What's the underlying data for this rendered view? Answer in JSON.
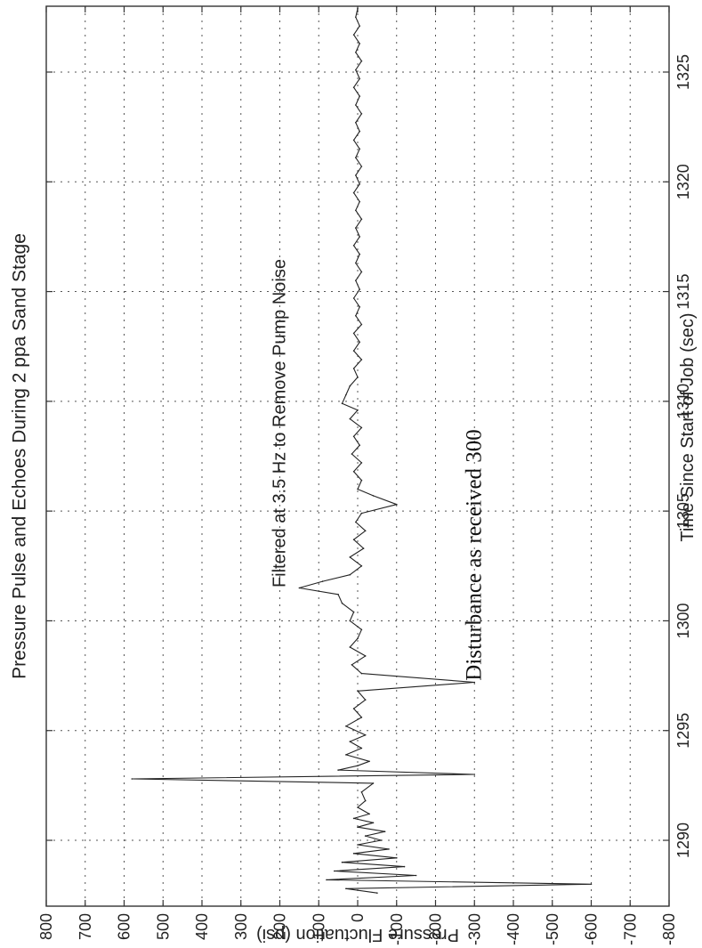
{
  "chart_data": {
    "type": "line",
    "orientation": "rotated-90-ccw",
    "title": "Pressure Pulse and Echoes During 2 ppa Sand Stage",
    "xlabel": "Time Since Start of Job (sec)",
    "ylabel": "Pressure Fluctuation (psi)",
    "xlim": [
      1287,
      1328
    ],
    "ylim": [
      -800,
      800
    ],
    "xticks": [
      1290,
      1295,
      1300,
      1305,
      1310,
      1315,
      1320,
      1325
    ],
    "yticks": [
      800,
      700,
      600,
      500,
      400,
      300,
      200,
      100,
      0,
      -100,
      -200,
      -300,
      -400,
      -500,
      -600,
      -700,
      -800
    ],
    "grid": true,
    "annotations": [
      {
        "text": "Filtered at 3.5 Hz to Remove Pump Noise",
        "x": 1309,
        "y": 200
      },
      {
        "text": "Disturbance as received 300",
        "x": 1303,
        "y": -300
      }
    ],
    "series": [
      {
        "points": [
          [
            1287.6,
            -50
          ],
          [
            1287.8,
            30
          ],
          [
            1288.0,
            -600
          ],
          [
            1288.2,
            80
          ],
          [
            1288.4,
            -150
          ],
          [
            1288.6,
            60
          ],
          [
            1288.8,
            -120
          ],
          [
            1289.0,
            40
          ],
          [
            1289.2,
            -100
          ],
          [
            1289.4,
            10
          ],
          [
            1289.6,
            -80
          ],
          [
            1289.8,
            0
          ],
          [
            1290.0,
            -60
          ],
          [
            1290.2,
            -20
          ],
          [
            1290.4,
            -70
          ],
          [
            1290.6,
            0
          ],
          [
            1290.8,
            -40
          ],
          [
            1291.0,
            10
          ],
          [
            1291.2,
            -30
          ],
          [
            1291.5,
            0
          ],
          [
            1291.8,
            -20
          ],
          [
            1292.2,
            -10
          ],
          [
            1292.6,
            -40
          ],
          [
            1292.8,
            580
          ],
          [
            1293.0,
            -300
          ],
          [
            1293.2,
            50
          ],
          [
            1293.4,
            0
          ],
          [
            1293.6,
            -30
          ],
          [
            1293.9,
            30
          ],
          [
            1294.2,
            -10
          ],
          [
            1294.5,
            20
          ],
          [
            1294.8,
            -20
          ],
          [
            1295.2,
            30
          ],
          [
            1295.6,
            -10
          ],
          [
            1296.0,
            10
          ],
          [
            1296.4,
            -20
          ],
          [
            1296.8,
            0
          ],
          [
            1297.2,
            -300
          ],
          [
            1297.6,
            -10
          ],
          [
            1298.0,
            15
          ],
          [
            1298.4,
            -20
          ],
          [
            1298.8,
            20
          ],
          [
            1299.2,
            0
          ],
          [
            1299.6,
            -10
          ],
          [
            1300.0,
            20
          ],
          [
            1300.4,
            10
          ],
          [
            1300.8,
            40
          ],
          [
            1301.2,
            50
          ],
          [
            1301.5,
            150
          ],
          [
            1301.8,
            90
          ],
          [
            1302.1,
            20
          ],
          [
            1302.5,
            -10
          ],
          [
            1302.9,
            20
          ],
          [
            1303.3,
            -15
          ],
          [
            1303.7,
            10
          ],
          [
            1304.1,
            -20
          ],
          [
            1304.5,
            5
          ],
          [
            1304.9,
            -10
          ],
          [
            1305.3,
            -100
          ],
          [
            1305.7,
            -40
          ],
          [
            1306.0,
            0
          ],
          [
            1306.4,
            -10
          ],
          [
            1306.8,
            10
          ],
          [
            1307.2,
            -10
          ],
          [
            1307.6,
            15
          ],
          [
            1308.0,
            -5
          ],
          [
            1308.4,
            10
          ],
          [
            1308.8,
            -10
          ],
          [
            1309.2,
            20
          ],
          [
            1309.6,
            0
          ],
          [
            1309.9,
            40
          ],
          [
            1310.3,
            30
          ],
          [
            1310.7,
            20
          ],
          [
            1311.1,
            0
          ],
          [
            1311.5,
            10
          ],
          [
            1311.9,
            -10
          ],
          [
            1312.3,
            10
          ],
          [
            1312.7,
            -5
          ],
          [
            1313.1,
            10
          ],
          [
            1313.5,
            -10
          ],
          [
            1313.9,
            5
          ],
          [
            1314.3,
            -5
          ],
          [
            1314.7,
            10
          ],
          [
            1315.1,
            -5
          ],
          [
            1315.5,
            5
          ],
          [
            1315.9,
            -10
          ],
          [
            1316.3,
            5
          ],
          [
            1316.7,
            -5
          ],
          [
            1317.1,
            10
          ],
          [
            1317.5,
            -5
          ],
          [
            1317.9,
            5
          ],
          [
            1318.3,
            -10
          ],
          [
            1318.7,
            5
          ],
          [
            1319.1,
            -5
          ],
          [
            1319.5,
            10
          ],
          [
            1319.9,
            -5
          ],
          [
            1320.3,
            5
          ],
          [
            1320.7,
            -10
          ],
          [
            1321.1,
            5
          ],
          [
            1321.5,
            -5
          ],
          [
            1321.9,
            10
          ],
          [
            1322.3,
            -5
          ],
          [
            1322.7,
            5
          ],
          [
            1323.1,
            -10
          ],
          [
            1323.5,
            5
          ],
          [
            1323.9,
            -5
          ],
          [
            1324.3,
            10
          ],
          [
            1324.7,
            -5
          ],
          [
            1325.1,
            5
          ],
          [
            1325.5,
            -10
          ],
          [
            1325.9,
            5
          ],
          [
            1326.3,
            -5
          ],
          [
            1326.7,
            10
          ],
          [
            1327.1,
            -5
          ],
          [
            1327.5,
            5
          ],
          [
            1327.9,
            0
          ]
        ]
      }
    ]
  }
}
